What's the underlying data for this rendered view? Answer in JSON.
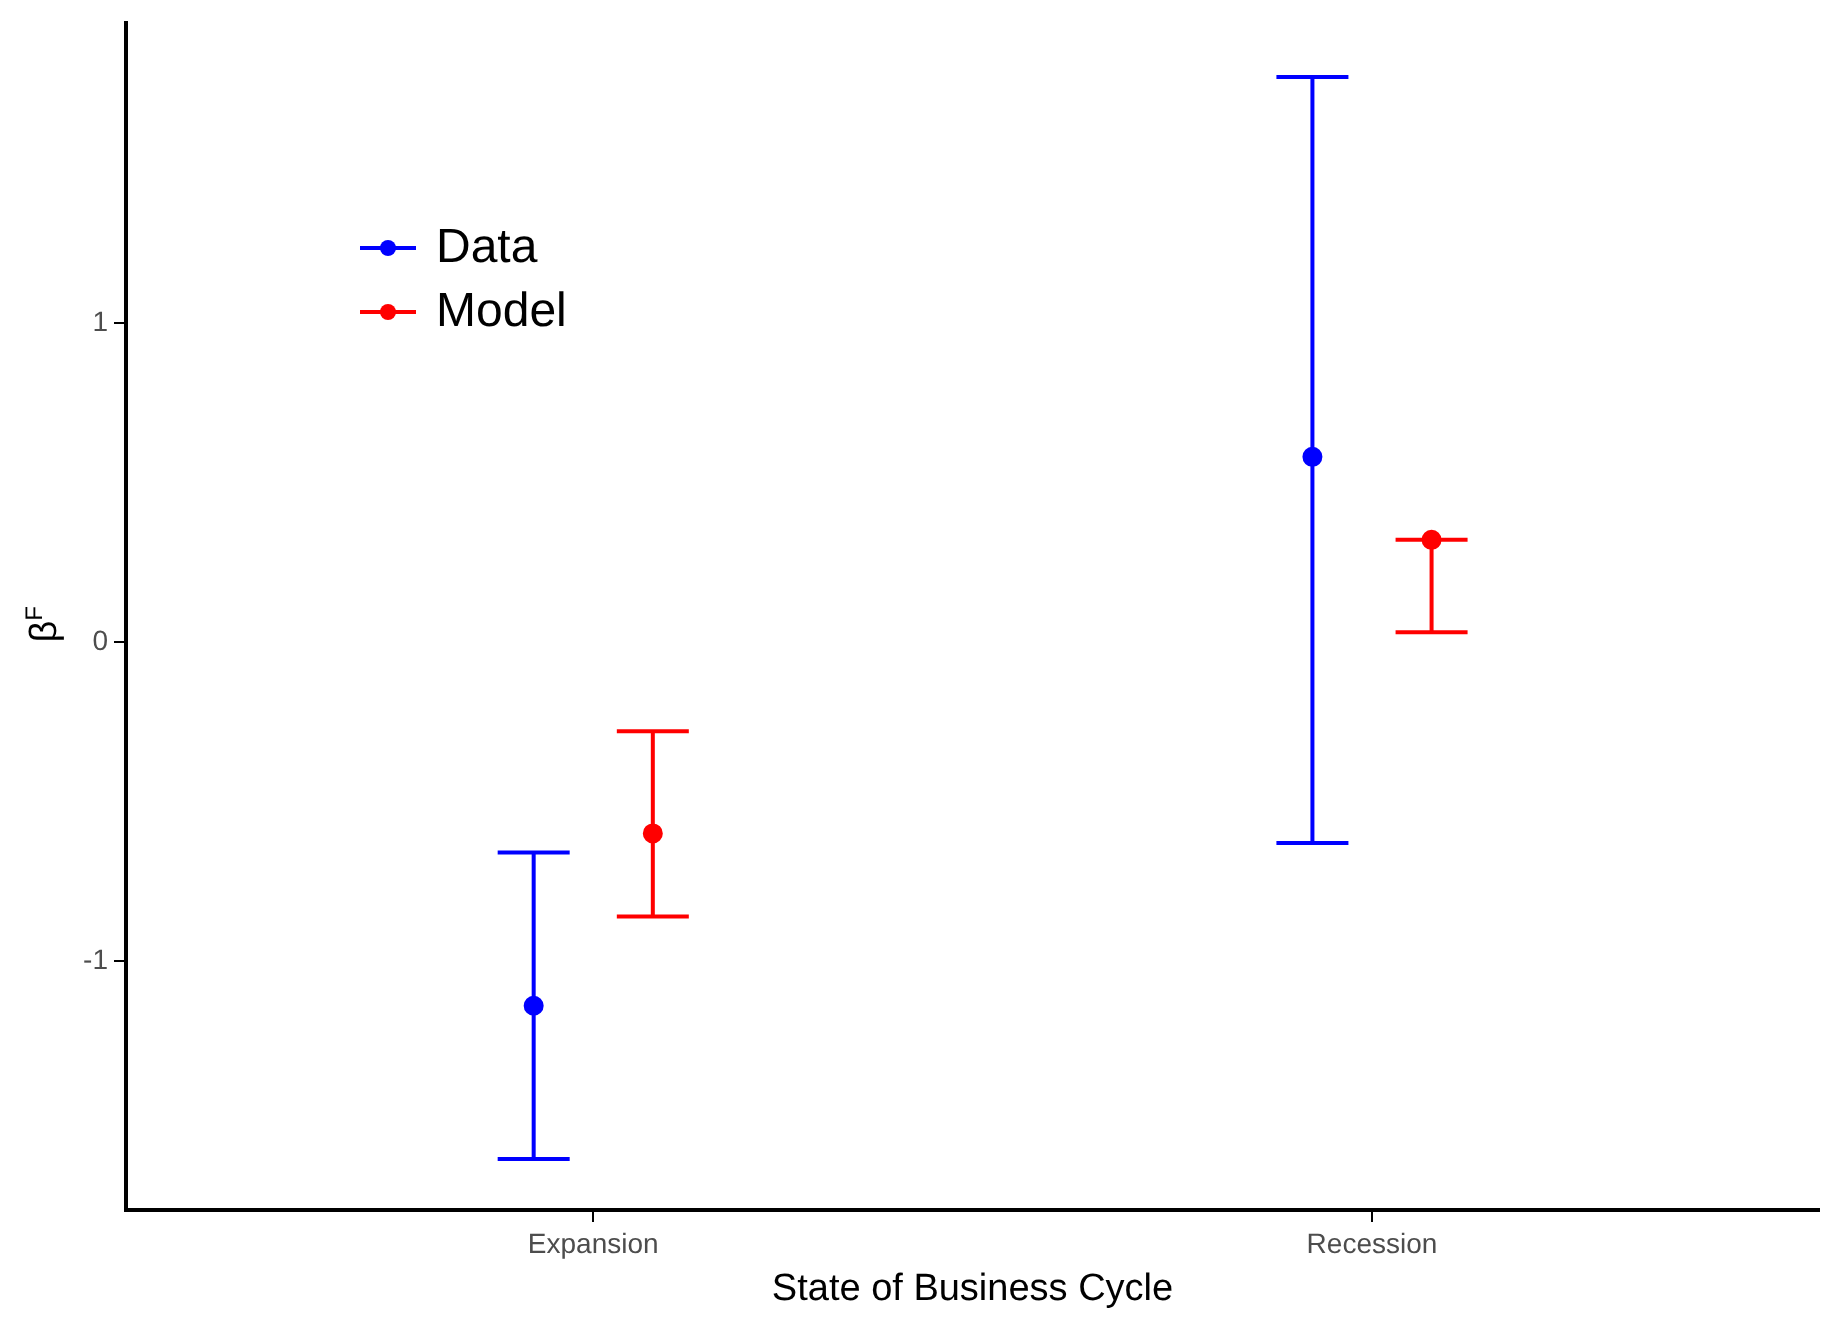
{
  "chart_data": {
    "type": "scatter",
    "xlabel": "State of Business Cycle",
    "ylabel": "β$^{F}$",
    "categories": [
      "Expansion",
      "Recession"
    ],
    "series": [
      {
        "name": "Data",
        "color": "#0000ff",
        "values": [
          -1.14,
          0.58
        ],
        "errors": [
          [
            -1.62,
            -0.66
          ],
          [
            -0.63,
            1.77
          ]
        ]
      },
      {
        "name": "Model",
        "color": "#ff0000",
        "values": [
          -0.6,
          0.32
        ],
        "errors": [
          [
            -0.86,
            -0.28
          ],
          [
            0.03,
            0.32
          ]
        ]
      }
    ],
    "ylim": [
      -1.78,
      1.94
    ],
    "yticks": [
      -1,
      0,
      1
    ],
    "grid": false,
    "legend": "top left",
    "marker": "circle"
  }
}
